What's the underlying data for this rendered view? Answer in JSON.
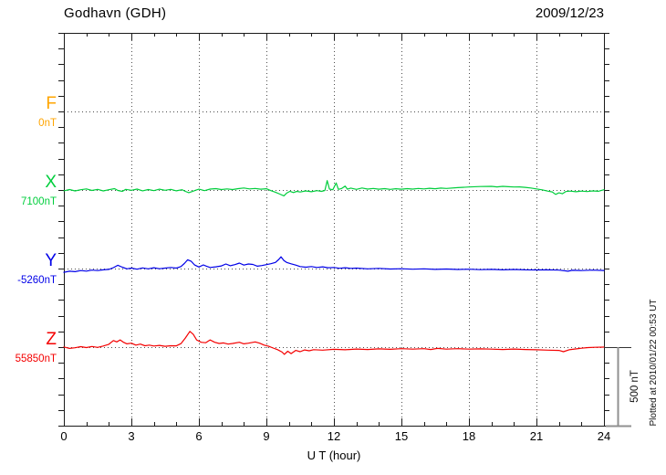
{
  "header": {
    "title": "Godhavn (GDH)",
    "date": "2009/12/23"
  },
  "plot": {
    "scale_bar": {
      "label": "500 nT",
      "nT": 500
    },
    "plotted_note": "Plotted at 2010/01/22 00:53 UT"
  },
  "chart_data": {
    "type": "line",
    "title": "Godhavn (GDH)",
    "date": "2009/12/23",
    "xlabel": "U T (hour)",
    "x_range_hours": [
      0,
      24
    ],
    "x_major_ticks": [
      0,
      3,
      6,
      9,
      12,
      15,
      18,
      21,
      24
    ],
    "x_minor_step_hours": 1,
    "y_tick_step_nT": 100,
    "baseline_separation_nT": 500,
    "grid": "dotted vertical lines at 3-hour majors; dotted horizontal line at each component baseline",
    "legend_position": "left margin (component letter + baseline value)",
    "scale_bar_nT": 500,
    "series": [
      {
        "name": "F",
        "color": "#FFA500",
        "baseline_label": "0nT",
        "offsets_nT": []
      },
      {
        "name": "X",
        "color": "#00CE3C",
        "baseline_label": "7100nT",
        "offsets_nT": [
          [
            0,
            -5
          ],
          [
            0.25,
            3
          ],
          [
            0.5,
            -6
          ],
          [
            0.75,
            2
          ],
          [
            1,
            7
          ],
          [
            1.25,
            -3
          ],
          [
            1.5,
            4
          ],
          [
            1.75,
            -6
          ],
          [
            2,
            2
          ],
          [
            2.25,
            9
          ],
          [
            2.4,
            -3
          ],
          [
            2.6,
            -9
          ],
          [
            2.75,
            4
          ],
          [
            3,
            -2
          ],
          [
            3.25,
            6
          ],
          [
            3.5,
            -5
          ],
          [
            3.75,
            3
          ],
          [
            4,
            -4
          ],
          [
            4.25,
            5
          ],
          [
            4.5,
            -2
          ],
          [
            4.75,
            4
          ],
          [
            5,
            -5
          ],
          [
            5.25,
            2
          ],
          [
            5.4,
            -9
          ],
          [
            5.55,
            -17
          ],
          [
            5.7,
            -10
          ],
          [
            5.85,
            -2
          ],
          [
            6,
            5
          ],
          [
            6.25,
            -4
          ],
          [
            6.5,
            6
          ],
          [
            6.75,
            9
          ],
          [
            7,
            3
          ],
          [
            7.25,
            7
          ],
          [
            7.5,
            3
          ],
          [
            7.75,
            9
          ],
          [
            8,
            13
          ],
          [
            8.25,
            7
          ],
          [
            8.5,
            10
          ],
          [
            8.75,
            5
          ],
          [
            9,
            8
          ],
          [
            9.2,
            -4
          ],
          [
            9.4,
            -14
          ],
          [
            9.6,
            -26
          ],
          [
            9.78,
            -37
          ],
          [
            9.9,
            -20
          ],
          [
            10.05,
            -8
          ],
          [
            10.2,
            -16
          ],
          [
            10.35,
            -9
          ],
          [
            10.5,
            -13
          ],
          [
            10.75,
            -6
          ],
          [
            11,
            -11
          ],
          [
            11.25,
            -4
          ],
          [
            11.45,
            -9
          ],
          [
            11.6,
            -3
          ],
          [
            11.7,
            60
          ],
          [
            11.8,
            6
          ],
          [
            11.95,
            2
          ],
          [
            12.1,
            45
          ],
          [
            12.2,
            4
          ],
          [
            12.35,
            10
          ],
          [
            12.5,
            25
          ],
          [
            12.6,
            5
          ],
          [
            12.75,
            12
          ],
          [
            13,
            4
          ],
          [
            13.25,
            13
          ],
          [
            13.5,
            6
          ],
          [
            13.75,
            10
          ],
          [
            14,
            5
          ],
          [
            14.25,
            9
          ],
          [
            14.5,
            4
          ],
          [
            14.75,
            8
          ],
          [
            15,
            5
          ],
          [
            15.25,
            9
          ],
          [
            15.5,
            6
          ],
          [
            15.75,
            10
          ],
          [
            16,
            7
          ],
          [
            16.25,
            11
          ],
          [
            16.5,
            8
          ],
          [
            16.75,
            12
          ],
          [
            17,
            10
          ],
          [
            17.5,
            15
          ],
          [
            18,
            19
          ],
          [
            18.5,
            22
          ],
          [
            19,
            23
          ],
          [
            19.25,
            20
          ],
          [
            19.5,
            23
          ],
          [
            19.75,
            21
          ],
          [
            20,
            19
          ],
          [
            20.25,
            20
          ],
          [
            20.5,
            17
          ],
          [
            20.75,
            13
          ],
          [
            21,
            7
          ],
          [
            21.25,
            1
          ],
          [
            21.5,
            -7
          ],
          [
            21.7,
            -12
          ],
          [
            21.85,
            -28
          ],
          [
            22,
            -18
          ],
          [
            22.15,
            -24
          ],
          [
            22.3,
            -10
          ],
          [
            22.5,
            -7
          ],
          [
            22.75,
            -11
          ],
          [
            23,
            -7
          ],
          [
            23.25,
            -10
          ],
          [
            23.5,
            -6
          ],
          [
            23.75,
            -8
          ],
          [
            24,
            2
          ]
        ]
      },
      {
        "name": "Y",
        "color": "#0000E8",
        "baseline_label": "-5260nT",
        "offsets_nT": [
          [
            0,
            -24
          ],
          [
            0.25,
            -17
          ],
          [
            0.5,
            -20
          ],
          [
            0.75,
            -13
          ],
          [
            1,
            -16
          ],
          [
            1.25,
            -10
          ],
          [
            1.5,
            -13
          ],
          [
            1.75,
            -8
          ],
          [
            2,
            -5
          ],
          [
            2.2,
            6
          ],
          [
            2.4,
            21
          ],
          [
            2.6,
            9
          ],
          [
            2.8,
            -2
          ],
          [
            3,
            3
          ],
          [
            3.25,
            -4
          ],
          [
            3.5,
            4
          ],
          [
            3.75,
            -2
          ],
          [
            4,
            5
          ],
          [
            4.25,
            -1
          ],
          [
            4.5,
            3
          ],
          [
            4.75,
            7
          ],
          [
            5,
            3
          ],
          [
            5.2,
            13
          ],
          [
            5.35,
            32
          ],
          [
            5.5,
            56
          ],
          [
            5.65,
            47
          ],
          [
            5.8,
            24
          ],
          [
            6,
            10
          ],
          [
            6.2,
            23
          ],
          [
            6.35,
            14
          ],
          [
            6.5,
            7
          ],
          [
            6.75,
            11
          ],
          [
            7,
            17
          ],
          [
            7.2,
            29
          ],
          [
            7.4,
            18
          ],
          [
            7.6,
            25
          ],
          [
            7.8,
            35
          ],
          [
            8,
            22
          ],
          [
            8.2,
            29
          ],
          [
            8.4,
            26
          ],
          [
            8.6,
            15
          ],
          [
            8.8,
            19
          ],
          [
            9,
            25
          ],
          [
            9.2,
            31
          ],
          [
            9.4,
            39
          ],
          [
            9.55,
            58
          ],
          [
            9.65,
            75
          ],
          [
            9.78,
            51
          ],
          [
            9.9,
            39
          ],
          [
            10.1,
            30
          ],
          [
            10.3,
            22
          ],
          [
            10.5,
            13
          ],
          [
            10.75,
            9
          ],
          [
            11,
            13
          ],
          [
            11.25,
            7
          ],
          [
            11.5,
            11
          ],
          [
            11.75,
            5
          ],
          [
            12,
            7
          ],
          [
            12.25,
            2
          ],
          [
            12.5,
            5
          ],
          [
            12.75,
            1
          ],
          [
            13,
            3
          ],
          [
            13.5,
            -2
          ],
          [
            14,
            1
          ],
          [
            14.5,
            -3
          ],
          [
            15,
            -1
          ],
          [
            15.5,
            -4
          ],
          [
            16,
            -2
          ],
          [
            16.5,
            -5
          ],
          [
            17,
            -3
          ],
          [
            17.5,
            -6
          ],
          [
            18,
            -4
          ],
          [
            18.5,
            -7
          ],
          [
            19,
            -5
          ],
          [
            19.5,
            -8
          ],
          [
            20,
            -6
          ],
          [
            20.5,
            -8
          ],
          [
            21,
            -9
          ],
          [
            21.5,
            -8
          ],
          [
            22,
            -10
          ],
          [
            22.4,
            -17
          ],
          [
            22.6,
            -11
          ],
          [
            23,
            -13
          ],
          [
            23.5,
            -10
          ],
          [
            24,
            -12
          ]
        ]
      },
      {
        "name": "Z",
        "color": "#F40000",
        "baseline_label": "55850nT",
        "offsets_nT": [
          [
            0,
            1
          ],
          [
            0.25,
            -8
          ],
          [
            0.5,
            -4
          ],
          [
            0.75,
            3
          ],
          [
            1,
            -3
          ],
          [
            1.25,
            4
          ],
          [
            1.5,
            -2
          ],
          [
            1.75,
            7
          ],
          [
            2,
            18
          ],
          [
            2.2,
            42
          ],
          [
            2.35,
            33
          ],
          [
            2.5,
            46
          ],
          [
            2.65,
            31
          ],
          [
            2.8,
            21
          ],
          [
            3,
            25
          ],
          [
            3.2,
            13
          ],
          [
            3.4,
            19
          ],
          [
            3.6,
            9
          ],
          [
            3.8,
            13
          ],
          [
            4,
            7
          ],
          [
            4.25,
            11
          ],
          [
            4.5,
            5
          ],
          [
            4.75,
            9
          ],
          [
            5,
            8
          ],
          [
            5.2,
            22
          ],
          [
            5.4,
            58
          ],
          [
            5.6,
            100
          ],
          [
            5.75,
            82
          ],
          [
            5.9,
            46
          ],
          [
            6.1,
            31
          ],
          [
            6.3,
            28
          ],
          [
            6.5,
            46
          ],
          [
            6.7,
            31
          ],
          [
            6.9,
            23
          ],
          [
            7.1,
            27
          ],
          [
            7.3,
            19
          ],
          [
            7.5,
            23
          ],
          [
            7.8,
            31
          ],
          [
            8,
            21
          ],
          [
            8.2,
            25
          ],
          [
            8.5,
            33
          ],
          [
            8.7,
            25
          ],
          [
            8.9,
            13
          ],
          [
            9.1,
            5
          ],
          [
            9.3,
            -6
          ],
          [
            9.5,
            -16
          ],
          [
            9.7,
            -32
          ],
          [
            9.8,
            -46
          ],
          [
            9.95,
            -26
          ],
          [
            10.1,
            -41
          ],
          [
            10.3,
            -21
          ],
          [
            10.5,
            -29
          ],
          [
            10.7,
            -18
          ],
          [
            10.9,
            -23
          ],
          [
            11.1,
            -16
          ],
          [
            11.5,
            -19
          ],
          [
            12,
            -14
          ],
          [
            12.5,
            -17
          ],
          [
            13,
            -12
          ],
          [
            13.5,
            -15
          ],
          [
            14,
            -11
          ],
          [
            14.5,
            -14
          ],
          [
            15,
            -10
          ],
          [
            15.5,
            -13
          ],
          [
            16,
            -10
          ],
          [
            16.3,
            -15
          ],
          [
            16.6,
            -8
          ],
          [
            17,
            -13
          ],
          [
            17.5,
            -10
          ],
          [
            18,
            -13
          ],
          [
            18.5,
            -11
          ],
          [
            19,
            -13
          ],
          [
            19.5,
            -15
          ],
          [
            20,
            -12
          ],
          [
            20.5,
            -15
          ],
          [
            21,
            -17
          ],
          [
            21.5,
            -19
          ],
          [
            22,
            -21
          ],
          [
            22.2,
            -29
          ],
          [
            22.45,
            -17
          ],
          [
            22.7,
            -12
          ],
          [
            23,
            -7
          ],
          [
            23.3,
            -3
          ],
          [
            23.6,
            -1
          ],
          [
            24,
            0
          ]
        ]
      }
    ]
  }
}
